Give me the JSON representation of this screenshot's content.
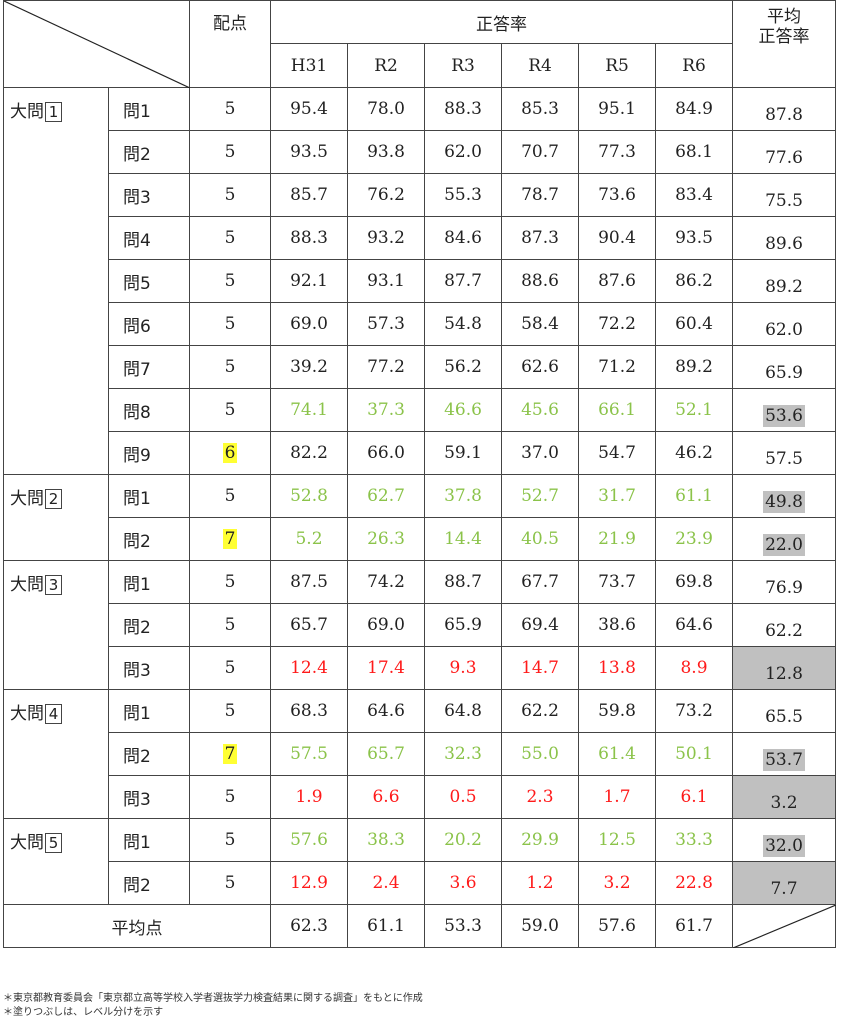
{
  "header": {
    "haiten": "配点",
    "seitouritsu": "正答率",
    "avg_line1": "平均",
    "avg_line2": "正答率",
    "years": [
      "H31",
      "R2",
      "R3",
      "R4",
      "R5",
      "R6"
    ]
  },
  "groups": [
    {
      "label": "大問1",
      "rows": [
        {
          "q": "問1",
          "pts": "5",
          "pts_hl": false,
          "vals": [
            "95.4",
            "78.0",
            "88.3",
            "85.3",
            "95.1",
            "84.9"
          ],
          "color": "",
          "avg": "87.8",
          "avg_shade": ""
        },
        {
          "q": "問2",
          "pts": "5",
          "pts_hl": false,
          "vals": [
            "93.5",
            "93.8",
            "62.0",
            "70.7",
            "77.3",
            "68.1"
          ],
          "color": "",
          "avg": "77.6",
          "avg_shade": ""
        },
        {
          "q": "問3",
          "pts": "5",
          "pts_hl": false,
          "vals": [
            "85.7",
            "76.2",
            "55.3",
            "78.7",
            "73.6",
            "83.4"
          ],
          "color": "",
          "avg": "75.5",
          "avg_shade": ""
        },
        {
          "q": "問4",
          "pts": "5",
          "pts_hl": false,
          "vals": [
            "88.3",
            "93.2",
            "84.6",
            "87.3",
            "90.4",
            "93.5"
          ],
          "color": "",
          "avg": "89.6",
          "avg_shade": ""
        },
        {
          "q": "問5",
          "pts": "5",
          "pts_hl": false,
          "vals": [
            "92.1",
            "93.1",
            "87.7",
            "88.6",
            "87.6",
            "86.2"
          ],
          "color": "",
          "avg": "89.2",
          "avg_shade": ""
        },
        {
          "q": "問6",
          "pts": "5",
          "pts_hl": false,
          "vals": [
            "69.0",
            "57.3",
            "54.8",
            "58.4",
            "72.2",
            "60.4"
          ],
          "color": "",
          "avg": "62.0",
          "avg_shade": ""
        },
        {
          "q": "問7",
          "pts": "5",
          "pts_hl": false,
          "vals": [
            "39.2",
            "77.2",
            "56.2",
            "62.6",
            "71.2",
            "89.2"
          ],
          "color": "",
          "avg": "65.9",
          "avg_shade": ""
        },
        {
          "q": "問8",
          "pts": "5",
          "pts_hl": false,
          "vals": [
            "74.1",
            "37.3",
            "46.6",
            "45.6",
            "66.1",
            "52.1"
          ],
          "color": "green",
          "avg": "53.6",
          "avg_shade": "gray"
        },
        {
          "q": "問9",
          "pts": "6",
          "pts_hl": true,
          "vals": [
            "82.2",
            "66.0",
            "59.1",
            "37.0",
            "54.7",
            "46.2"
          ],
          "color": "",
          "avg": "57.5",
          "avg_shade": ""
        }
      ]
    },
    {
      "label": "大問2",
      "rows": [
        {
          "q": "問1",
          "pts": "5",
          "pts_hl": false,
          "vals": [
            "52.8",
            "62.7",
            "37.8",
            "52.7",
            "31.7",
            "61.1"
          ],
          "color": "green",
          "avg": "49.8",
          "avg_shade": "gray"
        },
        {
          "q": "問2",
          "pts": "7",
          "pts_hl": true,
          "vals": [
            "5.2",
            "26.3",
            "14.4",
            "40.5",
            "21.9",
            "23.9"
          ],
          "color": "green",
          "avg": "22.0",
          "avg_shade": "gray"
        }
      ]
    },
    {
      "label": "大問3",
      "rows": [
        {
          "q": "問1",
          "pts": "5",
          "pts_hl": false,
          "vals": [
            "87.5",
            "74.2",
            "88.7",
            "67.7",
            "73.7",
            "69.8"
          ],
          "color": "",
          "avg": "76.9",
          "avg_shade": ""
        },
        {
          "q": "問2",
          "pts": "5",
          "pts_hl": false,
          "vals": [
            "65.7",
            "69.0",
            "65.9",
            "69.4",
            "38.6",
            "64.6"
          ],
          "color": "",
          "avg": "62.2",
          "avg_shade": ""
        },
        {
          "q": "問3",
          "pts": "5",
          "pts_hl": false,
          "vals": [
            "12.4",
            "17.4",
            "9.3",
            "14.7",
            "13.8",
            "8.9"
          ],
          "color": "red",
          "avg": "12.8",
          "avg_shade": "full"
        }
      ]
    },
    {
      "label": "大問4",
      "rows": [
        {
          "q": "問1",
          "pts": "5",
          "pts_hl": false,
          "vals": [
            "68.3",
            "64.6",
            "64.8",
            "62.2",
            "59.8",
            "73.2"
          ],
          "color": "",
          "avg": "65.5",
          "avg_shade": ""
        },
        {
          "q": "問2",
          "pts": "7",
          "pts_hl": true,
          "vals": [
            "57.5",
            "65.7",
            "32.3",
            "55.0",
            "61.4",
            "50.1"
          ],
          "color": "green",
          "avg": "53.7",
          "avg_shade": "gray"
        },
        {
          "q": "問3",
          "pts": "5",
          "pts_hl": false,
          "vals": [
            "1.9",
            "6.6",
            "0.5",
            "2.3",
            "1.7",
            "6.1"
          ],
          "color": "red",
          "avg": "3.2",
          "avg_shade": "full"
        }
      ]
    },
    {
      "label": "大問5",
      "rows": [
        {
          "q": "問1",
          "pts": "5",
          "pts_hl": false,
          "vals": [
            "57.6",
            "38.3",
            "20.2",
            "29.9",
            "12.5",
            "33.3"
          ],
          "color": "green",
          "avg": "32.0",
          "avg_shade": "gray"
        },
        {
          "q": "問2",
          "pts": "5",
          "pts_hl": false,
          "vals": [
            "12.9",
            "2.4",
            "3.6",
            "1.2",
            "3.2",
            "22.8"
          ],
          "color": "red",
          "avg": "7.7",
          "avg_shade": "full"
        }
      ]
    }
  ],
  "total": {
    "label": "平均点",
    "vals": [
      "62.3",
      "61.1",
      "53.3",
      "59.0",
      "57.6",
      "61.7"
    ]
  },
  "footnotes": [
    "＊東京都教育委員会「東京都立高等学校入学者選抜学力検査結果に関する調査」をもとに作成",
    "＊塗りつぶしは、レベル分けを示す"
  ],
  "colors": {
    "green": "#8bc34a",
    "red": "#ff1a1a",
    "yellow": "#ffff33",
    "gray": "#c0c0c0"
  }
}
